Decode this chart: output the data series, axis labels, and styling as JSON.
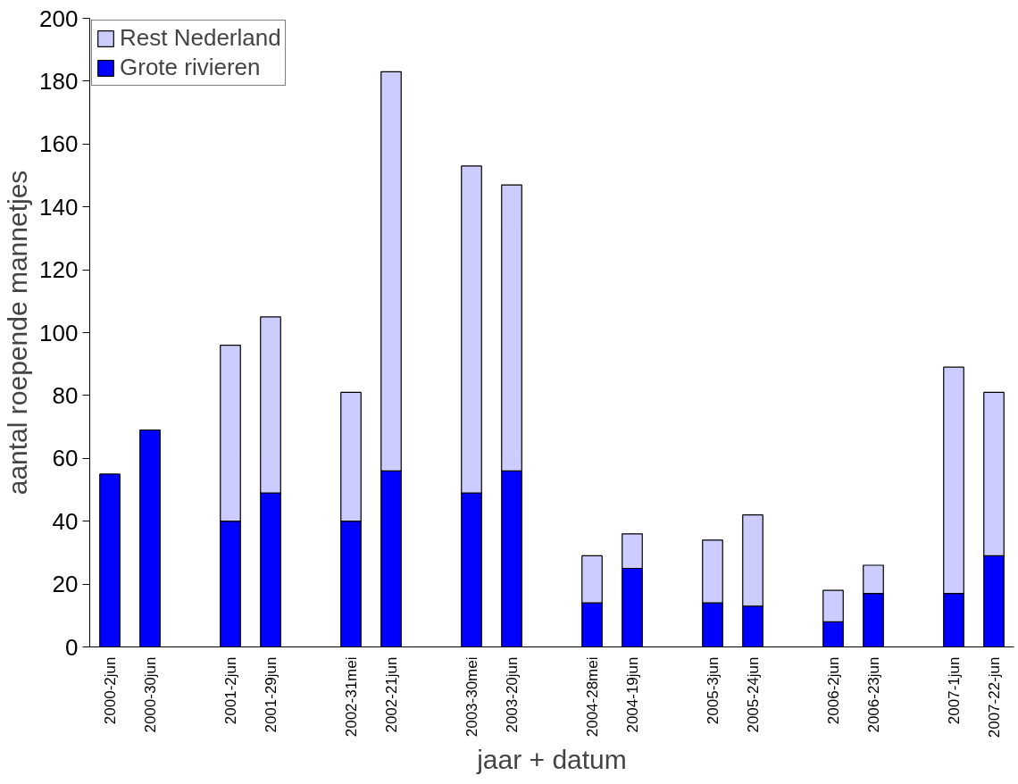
{
  "chart_data": {
    "type": "bar",
    "stacked": true,
    "xlabel": "jaar + datum",
    "ylabel": "aantal roepende mannetjes",
    "categories": [
      "2000-2jun",
      "2000-30jun",
      null,
      "2001-2jun",
      "2001-29jun",
      null,
      "2002-31mei",
      "2002-21jun",
      null,
      "2003-30mei",
      "2003-20jun",
      null,
      "2004-28mei",
      "2004-19jun",
      null,
      "2005-3jun",
      "2005-24jun",
      null,
      "2006-2jun",
      "2006-23jun",
      null,
      "2007-1jun",
      "2007-22-jun"
    ],
    "series": [
      {
        "name": "Grote rivieren",
        "color": "#0000ff",
        "values": [
          55,
          69,
          null,
          40,
          49,
          null,
          40,
          56,
          null,
          49,
          56,
          null,
          14,
          25,
          null,
          14,
          13,
          null,
          8,
          17,
          null,
          17,
          29
        ]
      },
      {
        "name": "Rest Nederland",
        "color": "#ccccff",
        "values": [
          null,
          null,
          null,
          56,
          56,
          null,
          41,
          127,
          null,
          104,
          91,
          null,
          15,
          11,
          null,
          20,
          29,
          null,
          10,
          9,
          null,
          72,
          52
        ]
      }
    ],
    "ylim": [
      0,
      200
    ],
    "yticks": [
      0,
      20,
      40,
      60,
      80,
      100,
      120,
      140,
      160,
      180,
      200
    ],
    "grid": false,
    "legend": "top left"
  }
}
